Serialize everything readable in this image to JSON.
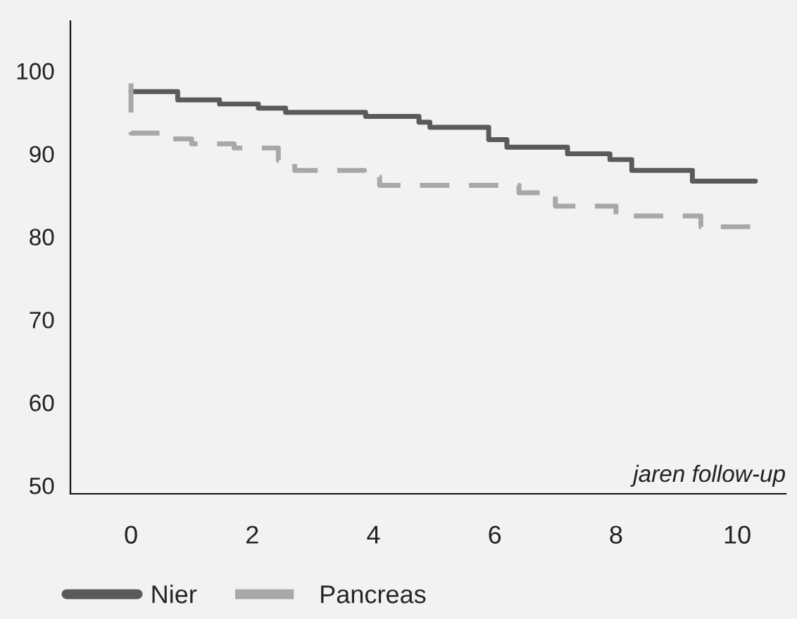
{
  "chart_data": {
    "type": "step",
    "xlabel": "jaren follow-up",
    "xlim": [
      -1,
      10.8
    ],
    "ylim": [
      49,
      106
    ],
    "xticks": [
      0,
      2,
      4,
      6,
      8,
      10
    ],
    "yticks": [
      50,
      60,
      70,
      80,
      90,
      100
    ],
    "grid": false,
    "legend": "bottom left",
    "marker": "none",
    "series": [
      {
        "name": "Nier",
        "color": "#5a5a5a",
        "line_style": "solid",
        "x": [
          0,
          0.77,
          1.46,
          2.1,
          2.55,
          3.87,
          4.75,
          4.93,
          5.9,
          6.2,
          7.2,
          7.9,
          8.26,
          9.26,
          10.3
        ],
        "values": [
          97.5,
          96.5,
          96,
          95.5,
          95,
          94.5,
          93.8,
          93.2,
          91.7,
          90.8,
          90,
          89.3,
          88,
          86.7,
          86.7
        ]
      },
      {
        "name": "Pancreas",
        "color": "#a8a8a8",
        "line_style": "dashed",
        "x": [
          0,
          0,
          0.65,
          1,
          1.7,
          2.43,
          2.7,
          3.85,
          4.1,
          6.4,
          7.0,
          8.0,
          9.4,
          10.3
        ],
        "values": [
          98.5,
          92.5,
          91.8,
          91.2,
          90.7,
          89.2,
          88,
          87.2,
          86.2,
          85.3,
          83.7,
          82.5,
          81.2,
          81.2
        ]
      }
    ]
  }
}
